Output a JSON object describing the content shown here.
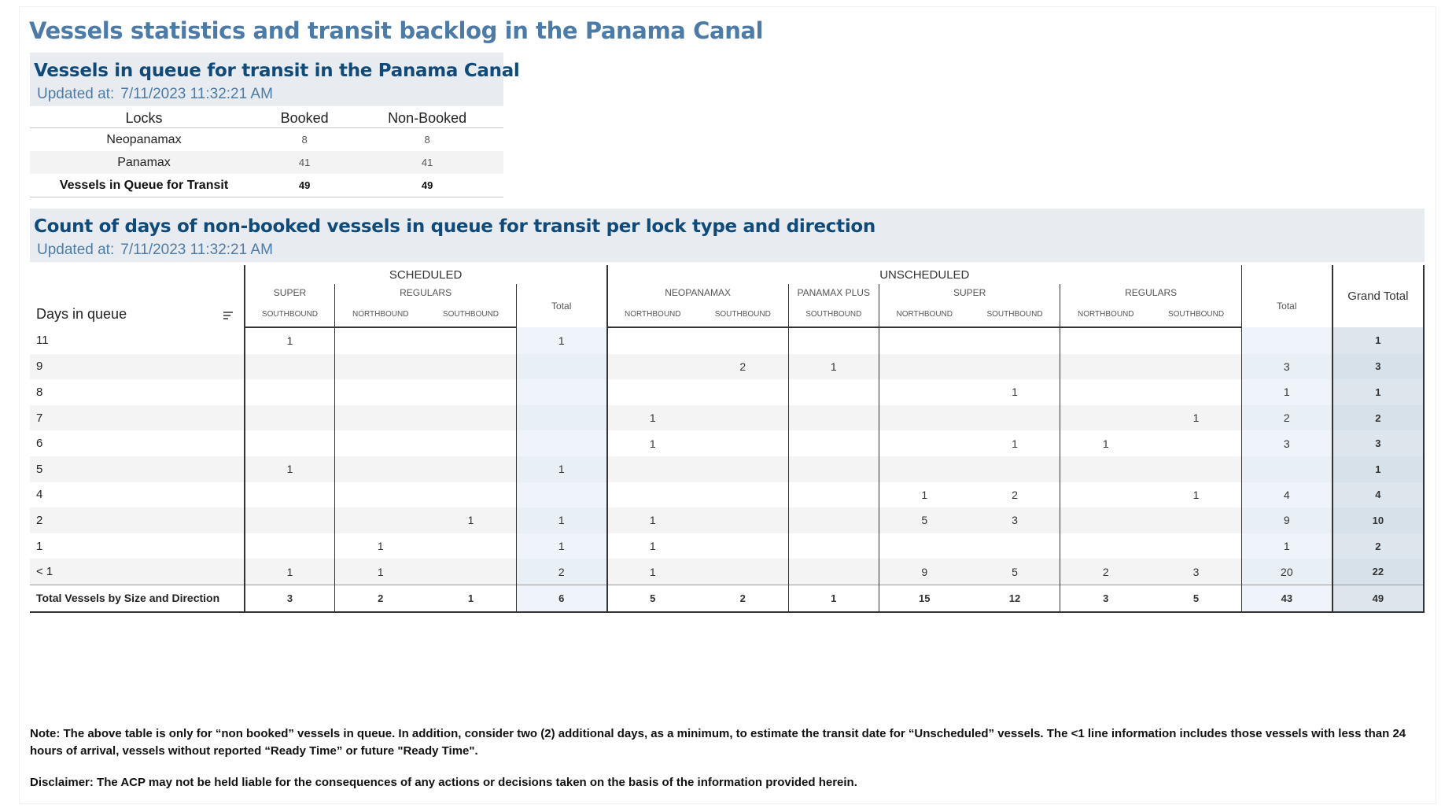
{
  "page_title": "Vessels statistics and transit backlog in the Panama Canal",
  "queue_panel": {
    "title": "Vessels in queue for transit in the Panama Canal",
    "updated_label": "Updated at:",
    "updated_value": "7/11/2023 11:32:21 AM",
    "columns": [
      "Locks",
      "Booked",
      "Non-Booked"
    ],
    "rows": [
      {
        "lock": "Neopanamax",
        "booked": "8",
        "non_booked": "8"
      },
      {
        "lock": "Panamax",
        "booked": "41",
        "non_booked": "41"
      }
    ],
    "total": {
      "lock": "Vessels in Queue for Transit",
      "booked": "49",
      "non_booked": "49"
    }
  },
  "days_panel": {
    "title": "Count of days of non-booked vessels in queue for transit per lock type and direction",
    "updated_label": "Updated at:",
    "updated_value": "7/11/2023 11:32:21 AM",
    "row_header": "Days in queue",
    "groups": {
      "scheduled": "SCHEDULED",
      "unscheduled": "UNSCHEDULED",
      "grand_total": "Grand Total",
      "total": "Total"
    },
    "subgroups": {
      "super": "SUPER",
      "regulars": "REGULARS",
      "neopanamax": "NEOPANAMAX",
      "panamax_plus": "PANAMAX PLUS"
    },
    "directions": {
      "northbound": "NORTHBOUND",
      "southbound": "SOUTHBOUND"
    },
    "rows": [
      {
        "day": "11",
        "v": [
          "1",
          "",
          "",
          "1",
          "",
          "",
          "",
          "",
          "",
          "",
          "",
          "",
          "1"
        ]
      },
      {
        "day": "9",
        "v": [
          "",
          "",
          "",
          "",
          "",
          "2",
          "1",
          "",
          "",
          "",
          "",
          "3",
          "3"
        ]
      },
      {
        "day": "8",
        "v": [
          "",
          "",
          "",
          "",
          "",
          "",
          "",
          "",
          "1",
          "",
          "",
          "1",
          "1"
        ]
      },
      {
        "day": "7",
        "v": [
          "",
          "",
          "",
          "",
          "1",
          "",
          "",
          "",
          "",
          "",
          "1",
          "2",
          "2"
        ]
      },
      {
        "day": "6",
        "v": [
          "",
          "",
          "",
          "",
          "1",
          "",
          "",
          "",
          "1",
          "1",
          "",
          "3",
          "3"
        ]
      },
      {
        "day": "5",
        "v": [
          "1",
          "",
          "",
          "1",
          "",
          "",
          "",
          "",
          "",
          "",
          "",
          "",
          "1"
        ]
      },
      {
        "day": "4",
        "v": [
          "",
          "",
          "",
          "",
          "",
          "",
          "",
          "1",
          "2",
          "",
          "1",
          "4",
          "4"
        ]
      },
      {
        "day": "2",
        "v": [
          "",
          "",
          "1",
          "1",
          "1",
          "",
          "",
          "5",
          "3",
          "",
          "",
          "9",
          "10"
        ]
      },
      {
        "day": "1",
        "v": [
          "",
          "1",
          "",
          "1",
          "1",
          "",
          "",
          "",
          "",
          "",
          "",
          "1",
          "2"
        ]
      },
      {
        "day": "< 1",
        "v": [
          "1",
          "1",
          "",
          "2",
          "1",
          "",
          "",
          "9",
          "5",
          "2",
          "3",
          "20",
          "22"
        ]
      }
    ],
    "total_row": {
      "day": "Total Vessels by Size and Direction",
      "v": [
        "3",
        "2",
        "1",
        "6",
        "5",
        "2",
        "1",
        "15",
        "12",
        "3",
        "5",
        "43",
        "49"
      ]
    }
  },
  "note": "Note:  The above table is only for “non booked” vessels in queue. In addition, consider two (2) additional days, as a minimum, to estimate the transit date for “Unscheduled” vessels.  The <1 line information includes those vessels with less than 24 hours of arrival, vessels without reported “Ready Time” or future \"Ready Time\".",
  "disclaimer": "Disclaimer: The ACP may not be held liable for the consequences of any actions or decisions taken on the basis of the information provided herein."
}
